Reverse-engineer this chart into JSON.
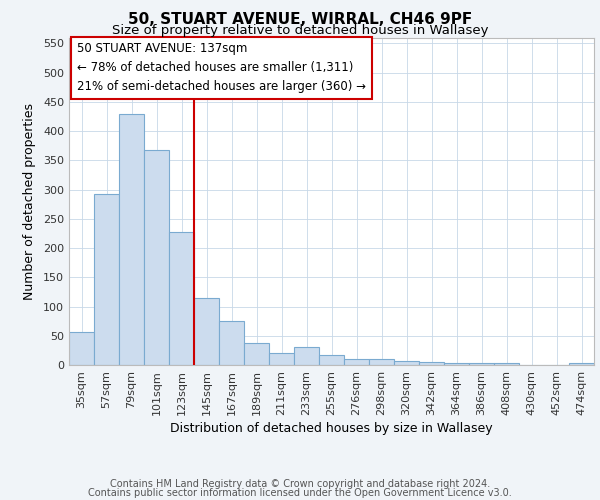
{
  "title1": "50, STUART AVENUE, WIRRAL, CH46 9PF",
  "title2": "Size of property relative to detached houses in Wallasey",
  "xlabel": "Distribution of detached houses by size in Wallasey",
  "ylabel": "Number of detached properties",
  "bar_color": "#ccdcee",
  "bar_edge_color": "#7aaad0",
  "background_color": "#f0f4f8",
  "plot_bg_color": "#ffffff",
  "grid_color": "#c8d8e8",
  "categories": [
    "35sqm",
    "57sqm",
    "79sqm",
    "101sqm",
    "123sqm",
    "145sqm",
    "167sqm",
    "189sqm",
    "211sqm",
    "233sqm",
    "255sqm",
    "276sqm",
    "298sqm",
    "320sqm",
    "342sqm",
    "364sqm",
    "386sqm",
    "408sqm",
    "430sqm",
    "452sqm",
    "474sqm"
  ],
  "values": [
    57,
    293,
    430,
    368,
    227,
    114,
    76,
    38,
    20,
    30,
    17,
    10,
    10,
    7,
    5,
    4,
    3,
    3,
    0,
    0,
    4
  ],
  "vline_color": "#cc0000",
  "annotation_title": "50 STUART AVENUE: 137sqm",
  "annotation_line1": "← 78% of detached houses are smaller (1,311)",
  "annotation_line2": "21% of semi-detached houses are larger (360) →",
  "annotation_box_color": "#ffffff",
  "annotation_border_color": "#cc0000",
  "ylim": [
    0,
    560
  ],
  "yticks": [
    0,
    50,
    100,
    150,
    200,
    250,
    300,
    350,
    400,
    450,
    500,
    550
  ],
  "footnote1": "Contains HM Land Registry data © Crown copyright and database right 2024.",
  "footnote2": "Contains public sector information licensed under the Open Government Licence v3.0.",
  "title1_fontsize": 11,
  "title2_fontsize": 9.5,
  "tick_fontsize": 8,
  "xlabel_fontsize": 9,
  "ylabel_fontsize": 9,
  "annotation_fontsize": 8.5,
  "footnote_fontsize": 7
}
